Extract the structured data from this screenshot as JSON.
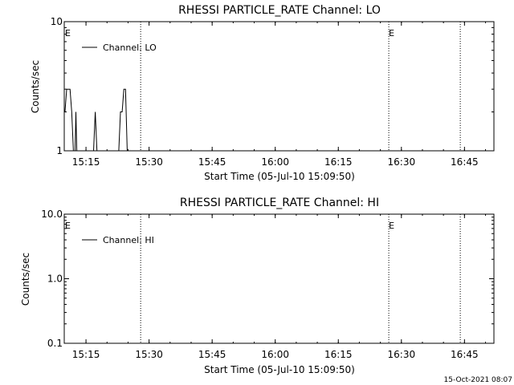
{
  "footer": {
    "timestamp": "15-Oct-2021 08:07"
  },
  "chart_data": [
    {
      "type": "line",
      "title": "RHESSI PARTICLE_RATE Channel: LO",
      "xlabel": "Start Time (05-Jul-10 15:09:50)",
      "ylabel": "Counts/sec",
      "yscale": "log",
      "ylim": [
        1,
        10
      ],
      "xlim_minutes": [
        15.18,
        16.87
      ],
      "xticks": [
        "15:15",
        "15:30",
        "15:45",
        "16:00",
        "16:15",
        "16:30",
        "16:45"
      ],
      "yticks": [
        "1",
        "10"
      ],
      "legend": {
        "entries": [
          "Channel: LO"
        ],
        "placement": "top-left"
      },
      "event_markers": [
        {
          "label": "E",
          "time": "15:10"
        },
        {
          "label": "",
          "time": "15:28"
        },
        {
          "label": "E",
          "time": "16:27"
        },
        {
          "label": "",
          "time": "16:44"
        }
      ],
      "series": [
        {
          "name": "Channel: LO",
          "x_minutes_since_15_00": [
            10.0,
            10.4,
            10.8,
            11.2,
            11.6,
            12.0,
            12.4,
            12.6,
            12.8,
            13.2,
            13.6,
            14.0,
            14.4,
            14.8,
            15.0,
            15.2,
            15.6,
            16.0,
            16.4,
            16.8,
            17.2,
            17.6,
            18.0,
            18.4,
            18.8,
            19.2,
            19.6,
            20.0,
            20.4,
            20.8,
            21.2,
            21.6,
            22.0,
            22.4,
            22.8,
            23.2,
            23.6,
            24.0,
            24.4,
            24.8,
            25.0
          ],
          "values": [
            2,
            3,
            3,
            3,
            2,
            1,
            1,
            2,
            1,
            1,
            1,
            1,
            1,
            1,
            1,
            1,
            1,
            1,
            1,
            1,
            2,
            1,
            1,
            1,
            1,
            1,
            1,
            1,
            1,
            1,
            1,
            1,
            1,
            1,
            1,
            2,
            2,
            3,
            3,
            1,
            1
          ]
        }
      ]
    },
    {
      "type": "line",
      "title": "RHESSI PARTICLE_RATE Channel: HI",
      "xlabel": "Start Time (05-Jul-10 15:09:50)",
      "ylabel": "Counts/sec",
      "yscale": "log",
      "ylim": [
        0.1,
        10
      ],
      "xticks": [
        "15:15",
        "15:30",
        "15:45",
        "16:00",
        "16:15",
        "16:30",
        "16:45"
      ],
      "yticks": [
        "0.1",
        "1.0",
        "10.0"
      ],
      "legend": {
        "entries": [
          "Channel: HI"
        ],
        "placement": "top-left"
      },
      "event_markers": [
        {
          "label": "E",
          "time": "15:10"
        },
        {
          "label": "",
          "time": "15:28"
        },
        {
          "label": "E",
          "time": "16:27"
        },
        {
          "label": "",
          "time": "16:44"
        }
      ],
      "series": [
        {
          "name": "Channel: HI",
          "values": []
        }
      ]
    }
  ]
}
